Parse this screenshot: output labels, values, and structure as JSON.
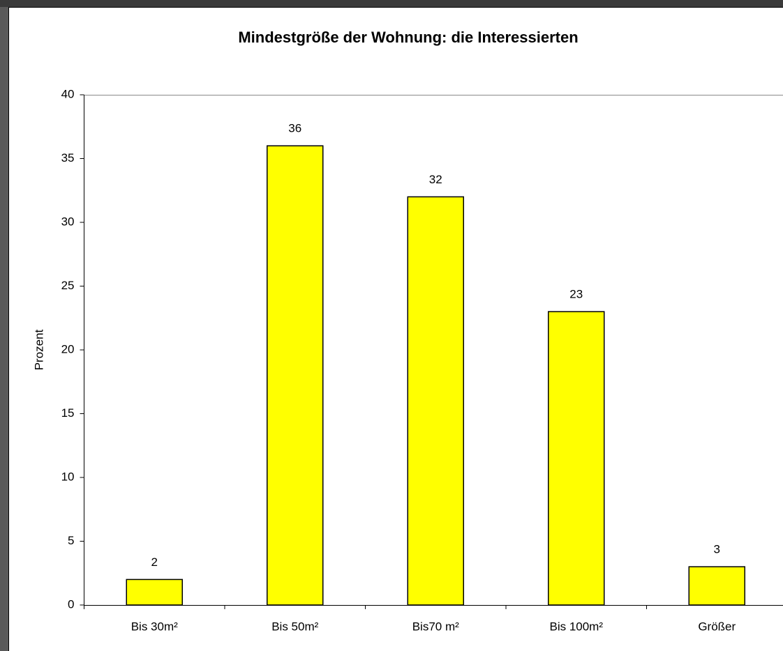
{
  "chart_data": {
    "type": "bar",
    "title": "Mindestgröße der Wohnung: die Interessierten",
    "y_label": "Prozent",
    "categories": [
      "Bis 30m²",
      "Bis 50m²",
      "Bis70 m²",
      "Bis 100m²",
      "Größer"
    ],
    "values": [
      2,
      36,
      32,
      23,
      3
    ],
    "color": "#ffff00",
    "ylim": [
      0,
      40
    ],
    "yticks": [
      0,
      5,
      10,
      15,
      20,
      25,
      30,
      35,
      40
    ],
    "grid": false
  }
}
